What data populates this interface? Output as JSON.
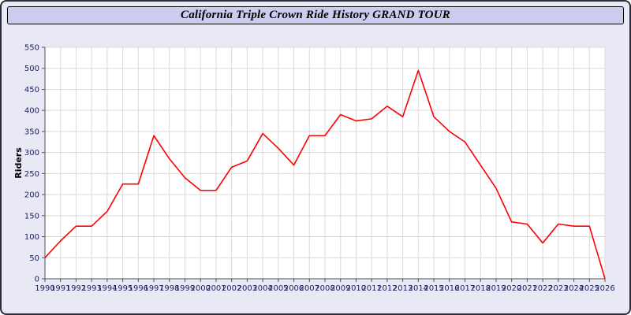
{
  "window": {
    "background_color": "#e9e9f5",
    "title_bar_color": "#ccccee",
    "border_color": "#2a2a3a"
  },
  "chart_data": {
    "type": "line",
    "title": "California Triple Crown Ride History GRAND TOUR",
    "xlabel": "",
    "ylabel": "Riders",
    "ylim": [
      0,
      550
    ],
    "ytick_step": 50,
    "grid": true,
    "legend": "none",
    "line_color": "#ff0000",
    "axis_text_color": "#202060",
    "axis_line_color": "#505050",
    "grid_color": "#d9d9d9",
    "plot_background": "#ffffff",
    "categories": [
      1990,
      1991,
      1992,
      1993,
      1994,
      1995,
      1996,
      1997,
      1998,
      1999,
      2000,
      2001,
      2002,
      2003,
      2004,
      2005,
      2006,
      2007,
      2008,
      2009,
      2010,
      2011,
      2012,
      2013,
      2014,
      2015,
      2016,
      2017,
      2018,
      2019,
      2020,
      2021,
      2022,
      2023,
      2024,
      2025,
      2026
    ],
    "values": [
      50,
      90,
      125,
      125,
      160,
      225,
      225,
      340,
      285,
      240,
      210,
      210,
      265,
      280,
      345,
      310,
      270,
      340,
      340,
      390,
      375,
      380,
      410,
      385,
      495,
      385,
      350,
      325,
      270,
      215,
      135,
      130,
      85,
      130,
      125,
      125,
      0
    ]
  }
}
